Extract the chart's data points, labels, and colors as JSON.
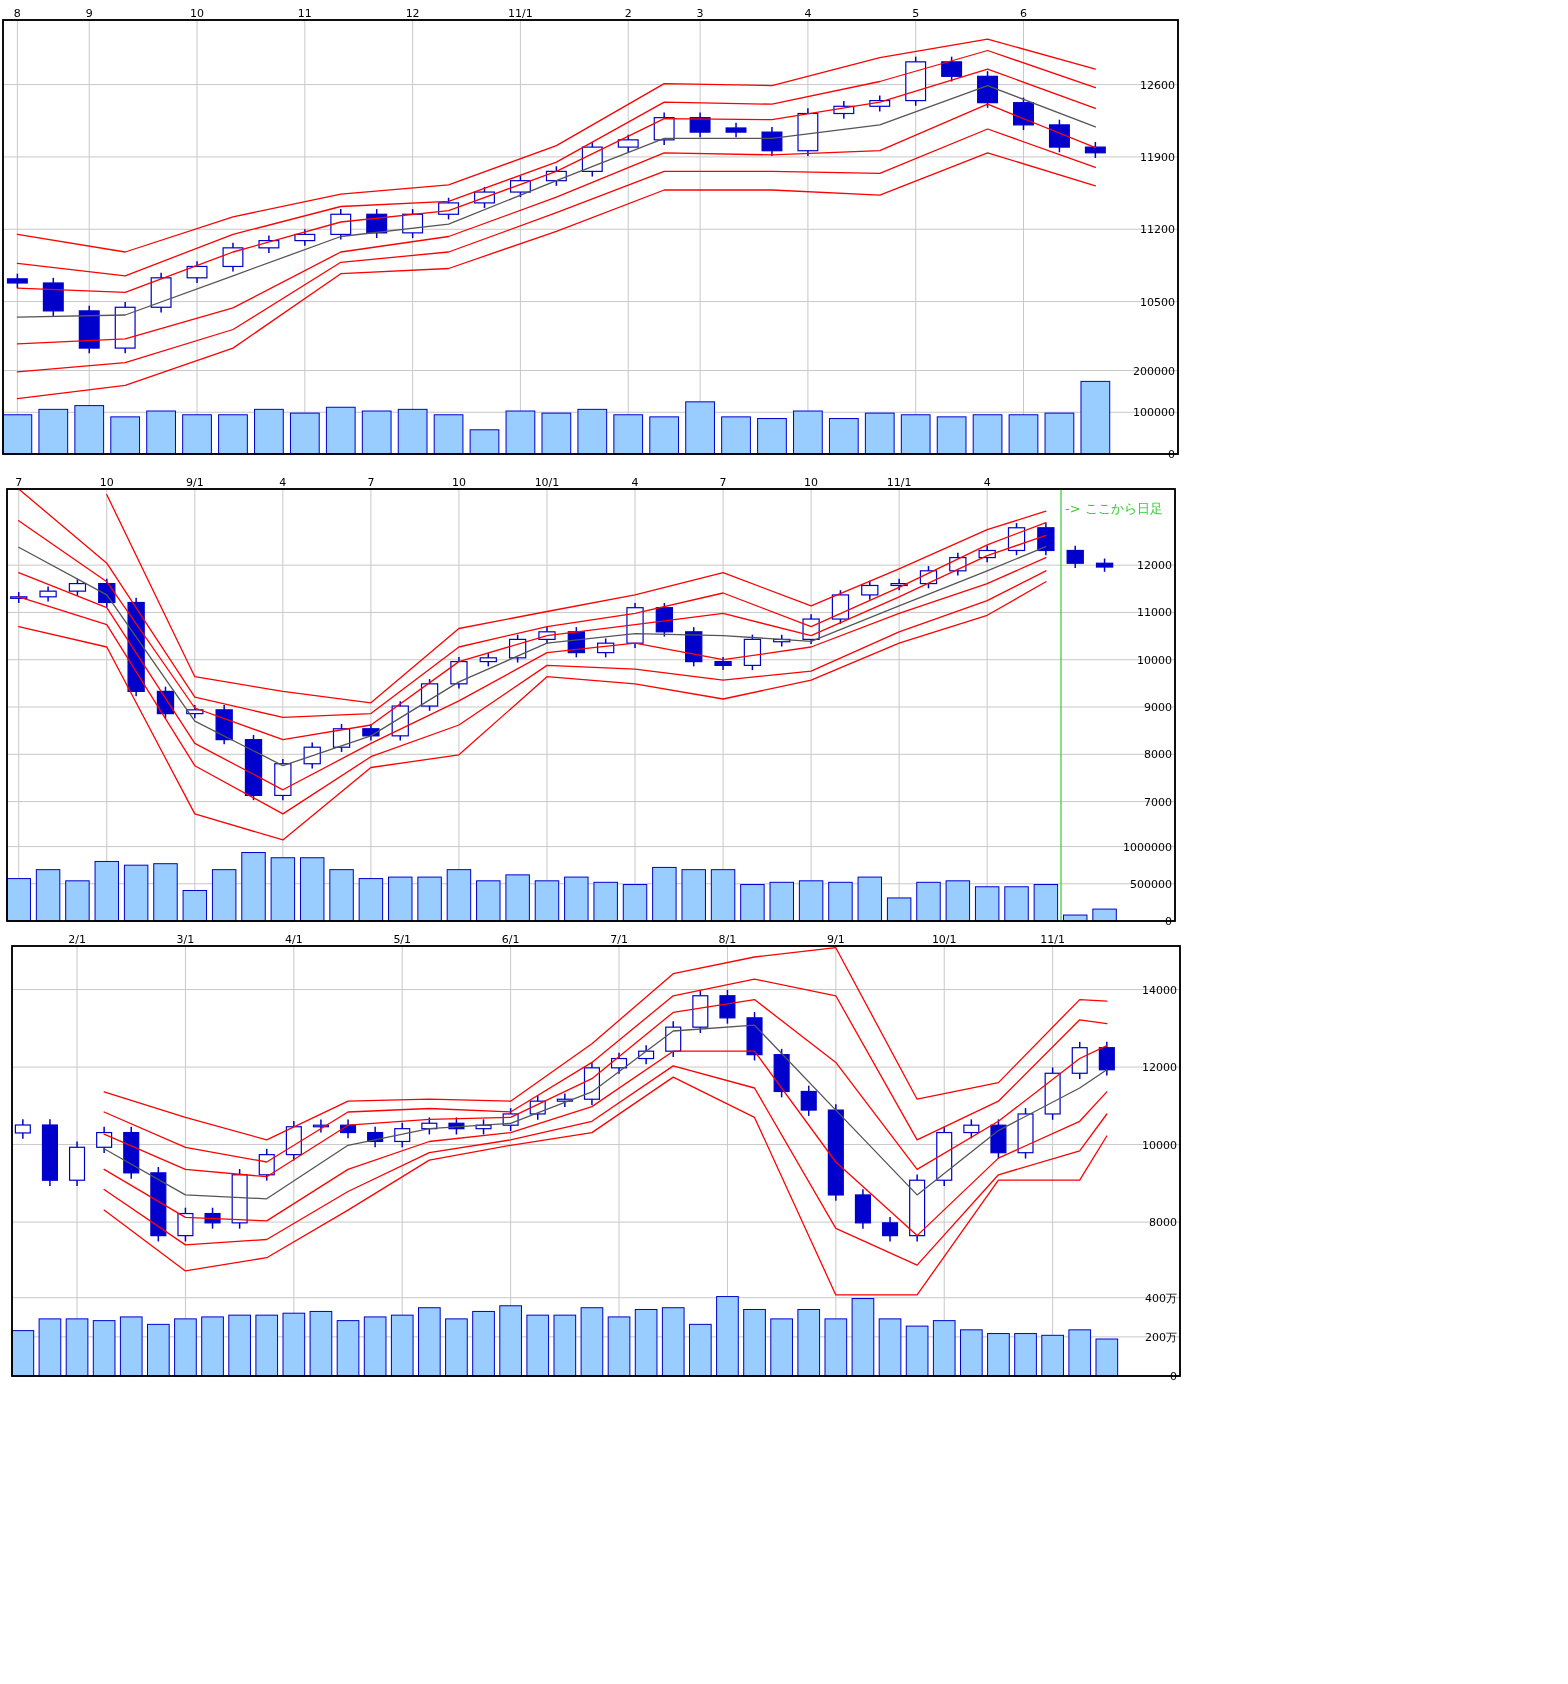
{
  "chart_data": [
    {
      "type": "candlestick",
      "color": "#0000cc",
      "grid": true,
      "ylim": [
        9025,
        13225
      ],
      "yticks": [
        10500,
        11200,
        11900,
        12600
      ],
      "categories": [
        "8",
        null,
        "9",
        null,
        null,
        "10",
        null,
        null,
        "11",
        null,
        null,
        "12",
        null,
        null,
        "11/1",
        null,
        null,
        "2",
        null,
        "3",
        null,
        null,
        "4",
        null,
        null,
        "5",
        null,
        null,
        "6",
        null,
        null
      ],
      "ohlc": [
        [
          10720,
          10770,
          10630,
          10680
        ],
        [
          10680,
          10730,
          10360,
          10410
        ],
        [
          10410,
          10460,
          10000,
          10050
        ],
        [
          10050,
          10495,
          10000,
          10445
        ],
        [
          10445,
          10780,
          10395,
          10730
        ],
        [
          10730,
          10890,
          10680,
          10840
        ],
        [
          10840,
          11070,
          10790,
          11020
        ],
        [
          11020,
          11140,
          10970,
          11090
        ],
        [
          11090,
          11200,
          11040,
          11150
        ],
        [
          11150,
          11395,
          11100,
          11345
        ],
        [
          11345,
          11395,
          11115,
          11165
        ],
        [
          11165,
          11395,
          11115,
          11345
        ],
        [
          11345,
          11505,
          11295,
          11455
        ],
        [
          11455,
          11610,
          11405,
          11560
        ],
        [
          11560,
          11720,
          11510,
          11670
        ],
        [
          11670,
          11810,
          11620,
          11760
        ],
        [
          11760,
          12045,
          11710,
          11995
        ],
        [
          11995,
          12115,
          11945,
          12065
        ],
        [
          12065,
          12330,
          12015,
          12280
        ],
        [
          12280,
          12330,
          12090,
          12140
        ],
        [
          12180,
          12230,
          12090,
          12140
        ],
        [
          12140,
          12190,
          11910,
          11960
        ],
        [
          11960,
          12370,
          11910,
          12320
        ],
        [
          12320,
          12440,
          12270,
          12390
        ],
        [
          12390,
          12495,
          12340,
          12445
        ],
        [
          12445,
          12870,
          12395,
          12820
        ],
        [
          12820,
          12870,
          12630,
          12680
        ],
        [
          12680,
          12730,
          12375,
          12425
        ],
        [
          12425,
          12475,
          12160,
          12210
        ],
        [
          12210,
          12260,
          11945,
          11995
        ],
        [
          11995,
          12045,
          11890,
          11940
        ]
      ],
      "series": [
        {
          "type": "line",
          "color": "#ff0000",
          "values": [
            11150,
            null,
            null,
            10980,
            null,
            null,
            11320,
            null,
            null,
            11540,
            null,
            null,
            11630,
            null,
            null,
            12010,
            null,
            null,
            12610,
            null,
            null,
            12590,
            null,
            null,
            12860,
            null,
            null,
            13040,
            null,
            null,
            12750
          ]
        },
        {
          "type": "line",
          "color": "#ff0000",
          "values": [
            10870,
            null,
            null,
            10750,
            null,
            null,
            11150,
            null,
            null,
            11420,
            null,
            null,
            11470,
            null,
            null,
            11850,
            null,
            null,
            12430,
            null,
            null,
            12410,
            null,
            null,
            12630,
            null,
            null,
            12930,
            null,
            null,
            12570
          ]
        },
        {
          "type": "line",
          "color": "#ff0000",
          "values": [
            10630,
            null,
            null,
            10590,
            null,
            null,
            10980,
            null,
            null,
            11270,
            null,
            null,
            11380,
            null,
            null,
            11760,
            null,
            null,
            12270,
            null,
            null,
            12260,
            null,
            null,
            12430,
            null,
            null,
            12750,
            null,
            null,
            12370
          ]
        },
        {
          "type": "line",
          "color": "#555555",
          "values": [
            10350,
            null,
            null,
            10370,
            null,
            null,
            10750,
            null,
            null,
            11130,
            null,
            null,
            11250,
            null,
            null,
            11670,
            null,
            null,
            12080,
            null,
            null,
            12080,
            null,
            null,
            12210,
            null,
            null,
            12590,
            null,
            null,
            12190
          ]
        },
        {
          "type": "line",
          "color": "#ff0000",
          "values": [
            10090,
            null,
            null,
            10140,
            null,
            null,
            10440,
            null,
            null,
            10980,
            null,
            null,
            11130,
            null,
            null,
            11510,
            null,
            null,
            11940,
            null,
            null,
            11920,
            null,
            null,
            11960,
            null,
            null,
            12410,
            null,
            null,
            11990
          ]
        },
        {
          "type": "line",
          "color": "#ff0000",
          "values": [
            9820,
            null,
            null,
            9910,
            null,
            null,
            10230,
            null,
            null,
            10880,
            null,
            null,
            10980,
            null,
            null,
            11360,
            null,
            null,
            11760,
            null,
            null,
            11760,
            null,
            null,
            11740,
            null,
            null,
            12170,
            null,
            null,
            11800
          ]
        },
        {
          "type": "line",
          "color": "#ff0000",
          "values": [
            9560,
            null,
            null,
            9690,
            null,
            null,
            10050,
            null,
            null,
            10770,
            null,
            null,
            10820,
            null,
            null,
            11180,
            null,
            null,
            11580,
            null,
            null,
            11580,
            null,
            null,
            11530,
            null,
            null,
            11940,
            null,
            null,
            11620
          ]
        }
      ]
    },
    {
      "type": "bar",
      "color": "#99ccff",
      "grid": "y",
      "tick_labels": "y",
      "ylim": [
        0,
        1040000
      ],
      "yticks": [
        0,
        100000,
        200000
      ],
      "categories": [
        null,
        null,
        null,
        null,
        null,
        null,
        null,
        null,
        null,
        null,
        null,
        null,
        null,
        null,
        null,
        null,
        null,
        null,
        null,
        null,
        null,
        null,
        null,
        null,
        null,
        null,
        null,
        null,
        null,
        null,
        null
      ],
      "values": [
        94000,
        107000,
        116000,
        89000,
        103000,
        94000,
        94000,
        107000,
        98000,
        112000,
        103000,
        107000,
        94000,
        58000,
        103000,
        98000,
        107000,
        94000,
        89000,
        125000,
        89000,
        85000,
        103000,
        85000,
        98000,
        94000,
        89000,
        94000,
        94000,
        98000,
        174000
      ]
    },
    {
      "type": "candlestick",
      "color": "#0000cc",
      "grid": true,
      "ylim": [
        4475,
        13610
      ],
      "yticks": [
        7000,
        8000,
        9000,
        10000,
        11000,
        12000
      ],
      "categories": [
        "7",
        null,
        null,
        "10",
        null,
        null,
        "9/1",
        null,
        null,
        "4",
        null,
        null,
        "7",
        null,
        null,
        "10",
        null,
        null,
        "10/1",
        null,
        null,
        "4",
        null,
        null,
        "7",
        null,
        null,
        "10",
        null,
        null,
        "11/1",
        null,
        null,
        "4",
        null,
        null,
        null,
        null
      ],
      "ohlc": [
        [
          11300,
          11430,
          11200,
          11330
        ],
        [
          11330,
          11550,
          11230,
          11450
        ],
        [
          11450,
          11710,
          11350,
          11610
        ],
        [
          11610,
          11710,
          11110,
          11210
        ],
        [
          11210,
          11310,
          9230,
          9330
        ],
        [
          9330,
          9430,
          8760,
          8860
        ],
        [
          8860,
          9040,
          8760,
          8940
        ],
        [
          8940,
          9040,
          8210,
          8310
        ],
        [
          8310,
          8410,
          7030,
          7130
        ],
        [
          7130,
          7900,
          7030,
          7800
        ],
        [
          7800,
          8250,
          7700,
          8150
        ],
        [
          8150,
          8640,
          8050,
          8540
        ],
        [
          8540,
          8640,
          8290,
          8390
        ],
        [
          8390,
          9120,
          8290,
          9020
        ],
        [
          9020,
          9590,
          8920,
          9490
        ],
        [
          9490,
          10060,
          9390,
          9960
        ],
        [
          9960,
          10140,
          9860,
          10040
        ],
        [
          10040,
          10530,
          9940,
          10430
        ],
        [
          10430,
          10690,
          10330,
          10590
        ],
        [
          10590,
          10690,
          10050,
          10150
        ],
        [
          10150,
          10450,
          10050,
          10350
        ],
        [
          10350,
          11200,
          10250,
          11100
        ],
        [
          11100,
          11200,
          10490,
          10590
        ],
        [
          10590,
          10690,
          9860,
          9960
        ],
        [
          9960,
          10060,
          9780,
          9880
        ],
        [
          9880,
          10530,
          9780,
          10430
        ],
        [
          10380,
          10530,
          10280,
          10430
        ],
        [
          10430,
          10960,
          10330,
          10860
        ],
        [
          10860,
          11470,
          10760,
          11370
        ],
        [
          11370,
          11670,
          11270,
          11570
        ],
        [
          11570,
          11710,
          11470,
          11610
        ],
        [
          11610,
          11980,
          11510,
          11880
        ],
        [
          11880,
          12260,
          11780,
          12160
        ],
        [
          12160,
          12410,
          12060,
          12310
        ],
        [
          12310,
          12890,
          12210,
          12790
        ],
        [
          12790,
          12890,
          12210,
          12310
        ],
        [
          12310,
          12410,
          11940,
          12040
        ],
        [
          12040,
          12140,
          11860,
          11960
        ]
      ],
      "series": [
        {
          "type": "line",
          "color": "#ff0000",
          "values": [
            null,
            null,
            null,
            13490,
            null,
            null,
            9640,
            null,
            null,
            9330,
            null,
            null,
            9090,
            null,
            null,
            10660,
            null,
            null,
            11020,
            null,
            null,
            11370,
            null,
            null,
            11840,
            null,
            null,
            11140,
            null,
            null,
            11920,
            null,
            null,
            12750,
            null,
            13140,
            null,
            null
          ]
        },
        {
          "type": "line",
          "color": "#ff0000",
          "values": [
            13610,
            null,
            null,
            12040,
            null,
            null,
            9210,
            null,
            null,
            8780,
            null,
            null,
            8860,
            null,
            null,
            10270,
            null,
            null,
            10700,
            null,
            null,
            10980,
            null,
            null,
            11410,
            null,
            null,
            10700,
            null,
            null,
            11530,
            null,
            null,
            12430,
            null,
            12900,
            null,
            null
          ]
        },
        {
          "type": "line",
          "color": "#ff0000",
          "values": [
            12940,
            null,
            null,
            11650,
            null,
            null,
            8980,
            null,
            null,
            8310,
            null,
            null,
            8620,
            null,
            null,
            9960,
            null,
            null,
            10510,
            null,
            null,
            10740,
            null,
            null,
            10980,
            null,
            null,
            10510,
            null,
            null,
            11330,
            null,
            null,
            12200,
            null,
            12630,
            null,
            null
          ]
        },
        {
          "type": "line",
          "color": "#555555",
          "values": [
            12380,
            null,
            null,
            11370,
            null,
            null,
            8700,
            null,
            null,
            7760,
            null,
            null,
            8390,
            null,
            null,
            9530,
            null,
            null,
            10350,
            null,
            null,
            10550,
            null,
            null,
            10510,
            null,
            null,
            10390,
            null,
            null,
            11140,
            null,
            null,
            11880,
            null,
            12390,
            null,
            null
          ]
        },
        {
          "type": "line",
          "color": "#ff0000",
          "values": [
            11840,
            null,
            null,
            11100,
            null,
            null,
            8230,
            null,
            null,
            7250,
            null,
            null,
            8230,
            null,
            null,
            9130,
            null,
            null,
            10150,
            null,
            null,
            10350,
            null,
            null,
            10000,
            null,
            null,
            10270,
            null,
            null,
            10980,
            null,
            null,
            11610,
            null,
            12160,
            null,
            null
          ]
        },
        {
          "type": "line",
          "color": "#ff0000",
          "values": [
            11330,
            null,
            null,
            10740,
            null,
            null,
            7760,
            null,
            null,
            6740,
            null,
            null,
            7950,
            null,
            null,
            8620,
            null,
            null,
            9880,
            null,
            null,
            9800,
            null,
            null,
            9570,
            null,
            null,
            9760,
            null,
            null,
            10590,
            null,
            null,
            11250,
            null,
            11880,
            null,
            null
          ]
        },
        {
          "type": "line",
          "color": "#ff0000",
          "values": [
            10700,
            null,
            null,
            10270,
            null,
            null,
            6740,
            null,
            null,
            6190,
            null,
            null,
            7720,
            null,
            null,
            7990,
            null,
            null,
            9640,
            null,
            null,
            9490,
            null,
            null,
            9170,
            null,
            null,
            9570,
            null,
            null,
            10350,
            null,
            null,
            10940,
            null,
            11650,
            null,
            null
          ]
        }
      ],
      "annotations": [
        "-> ここから日足"
      ]
    },
    {
      "type": "bar",
      "color": "#99ccff",
      "grid": "y",
      "tick_labels": "y",
      "ylim": [
        0,
        5805000
      ],
      "yticks": [
        0,
        500000,
        1000000
      ],
      "categories": [
        null,
        null,
        null,
        null,
        null,
        null,
        null,
        null,
        null,
        null,
        null,
        null,
        null,
        null,
        null,
        null,
        null,
        null,
        null,
        null,
        null,
        null,
        null,
        null,
        null,
        null,
        null,
        null,
        null,
        null,
        null,
        null,
        null,
        null,
        null,
        null,
        null,
        null
      ],
      "values": [
        570000,
        690000,
        540000,
        800000,
        750000,
        770000,
        410000,
        690000,
        920000,
        850000,
        850000,
        690000,
        570000,
        590000,
        590000,
        690000,
        540000,
        620000,
        540000,
        590000,
        520000,
        490000,
        720000,
        690000,
        690000,
        490000,
        520000,
        540000,
        520000,
        590000,
        310000,
        520000,
        540000,
        460000,
        460000,
        490000,
        80000,
        160000
      ]
    },
    {
      "type": "candlestick",
      "color": "#0000cc",
      "grid": true,
      "ylim": [
        4028,
        15124
      ],
      "yticks": [
        8000,
        10000,
        12000,
        14000
      ],
      "categories": [
        null,
        null,
        "2/1",
        null,
        null,
        null,
        "3/1",
        null,
        null,
        null,
        "4/1",
        null,
        null,
        null,
        "5/1",
        null,
        null,
        null,
        "6/1",
        null,
        null,
        null,
        "7/1",
        null,
        null,
        null,
        "8/1",
        null,
        null,
        null,
        "9/1",
        null,
        null,
        null,
        "10/1",
        null,
        null,
        null,
        "11/1",
        null,
        null
      ],
      "ohlc": [
        [
          10300,
          10655,
          10150,
          10505
        ],
        [
          10505,
          10655,
          8930,
          9080
        ],
        [
          9080,
          10080,
          8930,
          9930
        ],
        [
          9930,
          10460,
          9780,
          10310
        ],
        [
          10310,
          10460,
          9120,
          9270
        ],
        [
          9270,
          9420,
          7500,
          7650
        ],
        [
          7650,
          8370,
          7500,
          8220
        ],
        [
          8220,
          8370,
          7830,
          7980
        ],
        [
          7980,
          9370,
          7830,
          9220
        ],
        [
          9220,
          9890,
          9070,
          9740
        ],
        [
          9740,
          10610,
          9590,
          10460
        ],
        [
          10460,
          10650,
          10310,
          10500
        ],
        [
          10500,
          10650,
          10160,
          10310
        ],
        [
          10310,
          10460,
          9930,
          10080
        ],
        [
          10080,
          10560,
          9930,
          10410
        ],
        [
          10410,
          10700,
          10260,
          10550
        ],
        [
          10550,
          10700,
          10260,
          10410
        ],
        [
          10410,
          10650,
          10260,
          10500
        ],
        [
          10500,
          10940,
          10350,
          10790
        ],
        [
          10790,
          11270,
          10640,
          11120
        ],
        [
          11120,
          11320,
          10970,
          11170
        ],
        [
          11170,
          12130,
          11020,
          11980
        ],
        [
          11980,
          12370,
          11830,
          12220
        ],
        [
          12220,
          12560,
          12070,
          12410
        ],
        [
          12410,
          13180,
          12260,
          13030
        ],
        [
          13030,
          13990,
          12880,
          13840
        ],
        [
          13840,
          13990,
          13120,
          13270
        ],
        [
          13270,
          13420,
          12170,
          12320
        ],
        [
          12320,
          12470,
          11220,
          11370
        ],
        [
          11370,
          11520,
          10740,
          10890
        ],
        [
          10890,
          11040,
          8550,
          8700
        ],
        [
          8700,
          8850,
          7830,
          7980
        ],
        [
          7980,
          8130,
          7500,
          7650
        ],
        [
          7650,
          9230,
          7500,
          9080
        ],
        [
          9080,
          10460,
          8930,
          10310
        ],
        [
          10310,
          10650,
          10160,
          10500
        ],
        [
          10500,
          10650,
          9640,
          9790
        ],
        [
          9790,
          10940,
          9640,
          10790
        ],
        [
          10790,
          11990,
          10640,
          11840
        ],
        [
          11840,
          12650,
          11690,
          12500
        ],
        [
          12500,
          12650,
          11780,
          11930
        ]
      ],
      "series": [
        {
          "type": "line",
          "color": "#ff0000",
          "values": [
            null,
            null,
            null,
            11360,
            null,
            null,
            10700,
            null,
            null,
            10120,
            null,
            null,
            11120,
            null,
            null,
            11170,
            null,
            null,
            11120,
            null,
            null,
            12600,
            null,
            null,
            14410,
            null,
            null,
            14840,
            null,
            null,
            15080,
            null,
            null,
            11170,
            null,
            null,
            11600,
            null,
            null,
            13740,
            13700
          ]
        },
        {
          "type": "line",
          "color": "#ff0000",
          "values": [
            null,
            null,
            null,
            10840,
            null,
            null,
            9930,
            null,
            null,
            9550,
            null,
            null,
            10840,
            null,
            null,
            10930,
            null,
            null,
            10840,
            null,
            null,
            12120,
            null,
            null,
            13840,
            null,
            null,
            14270,
            null,
            null,
            13840,
            null,
            null,
            10120,
            null,
            null,
            11120,
            null,
            null,
            13220,
            13120
          ]
        },
        {
          "type": "line",
          "color": "#ff0000",
          "values": [
            null,
            null,
            null,
            10270,
            null,
            null,
            9360,
            null,
            null,
            9170,
            null,
            null,
            10500,
            null,
            null,
            10650,
            null,
            null,
            10700,
            null,
            null,
            11700,
            null,
            null,
            13410,
            null,
            null,
            13740,
            null,
            null,
            12120,
            null,
            null,
            9360,
            null,
            null,
            10600,
            null,
            null,
            12220,
            12550
          ]
        },
        {
          "type": "line",
          "color": "#555555",
          "values": [
            null,
            null,
            null,
            9890,
            null,
            null,
            8700,
            null,
            null,
            8600,
            null,
            null,
            9980,
            null,
            null,
            10410,
            null,
            null,
            10550,
            null,
            null,
            11360,
            null,
            null,
            12930,
            null,
            null,
            13080,
            null,
            null,
            10890,
            null,
            null,
            8700,
            null,
            null,
            10360,
            null,
            null,
            11460,
            11930
          ]
        },
        {
          "type": "line",
          "color": "#ff0000",
          "values": [
            null,
            null,
            null,
            9360,
            null,
            null,
            8120,
            null,
            null,
            8030,
            null,
            null,
            9360,
            null,
            null,
            10080,
            null,
            null,
            10310,
            null,
            null,
            10980,
            null,
            null,
            12410,
            null,
            null,
            12410,
            null,
            null,
            9550,
            null,
            null,
            7650,
            null,
            null,
            9650,
            null,
            null,
            10600,
            11360
          ]
        },
        {
          "type": "line",
          "color": "#ff0000",
          "values": [
            null,
            null,
            null,
            8840,
            null,
            null,
            7410,
            null,
            null,
            7550,
            null,
            null,
            8790,
            null,
            null,
            9790,
            null,
            null,
            10120,
            null,
            null,
            10600,
            null,
            null,
            12030,
            null,
            null,
            11460,
            null,
            null,
            7840,
            null,
            null,
            6890,
            null,
            null,
            9220,
            null,
            null,
            9840,
            10790
          ]
        },
        {
          "type": "line",
          "color": "#ff0000",
          "values": [
            null,
            null,
            null,
            8310,
            null,
            null,
            6740,
            null,
            null,
            7080,
            null,
            null,
            8310,
            null,
            null,
            9600,
            null,
            null,
            9980,
            null,
            null,
            10310,
            null,
            null,
            11740,
            null,
            null,
            10700,
            null,
            null,
            6120,
            null,
            null,
            6120,
            null,
            null,
            9080,
            null,
            null,
            9080,
            10220
          ]
        }
      ]
    },
    {
      "type": "bar",
      "color": "#99ccff",
      "grid": "y",
      "tick_labels": "y",
      "ylim": [
        0,
        2198
      ],
      "yticks": [
        0,
        {
          "value": 200,
          "label": "200万"
        },
        {
          "value": 400,
          "label": "400万"
        }
      ],
      "categories": [
        null,
        null,
        null,
        null,
        null,
        null,
        null,
        null,
        null,
        null,
        null,
        null,
        null,
        null,
        null,
        null,
        null,
        null,
        null,
        null,
        null,
        null,
        null,
        null,
        null,
        null,
        null,
        null,
        null,
        null,
        null,
        null,
        null,
        null,
        null,
        null,
        null,
        null,
        null,
        null,
        null
      ],
      "values": [
        232,
        292,
        292,
        283,
        302,
        264,
        292,
        302,
        311,
        311,
        321,
        330,
        283,
        302,
        311,
        349,
        292,
        330,
        359,
        311,
        311,
        349,
        302,
        340,
        349,
        264,
        406,
        340,
        292,
        340,
        292,
        396,
        292,
        255,
        283,
        236,
        217,
        217,
        208,
        236,
        189
      ]
    }
  ]
}
